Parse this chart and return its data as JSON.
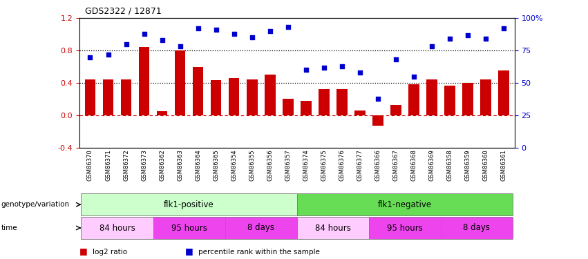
{
  "title": "GDS2322 / 12871",
  "samples": [
    "GSM86370",
    "GSM86371",
    "GSM86372",
    "GSM86373",
    "GSM86362",
    "GSM86363",
    "GSM86364",
    "GSM86365",
    "GSM86354",
    "GSM86355",
    "GSM86356",
    "GSM86357",
    "GSM86374",
    "GSM86375",
    "GSM86376",
    "GSM86377",
    "GSM86366",
    "GSM86367",
    "GSM86368",
    "GSM86369",
    "GSM86358",
    "GSM86359",
    "GSM86360",
    "GSM86361"
  ],
  "log2_ratio": [
    0.44,
    0.44,
    0.44,
    0.84,
    0.05,
    0.8,
    0.6,
    0.43,
    0.46,
    0.44,
    0.5,
    0.2,
    0.18,
    0.32,
    0.32,
    0.06,
    -0.13,
    0.13,
    0.38,
    0.44,
    0.37,
    0.4,
    0.44,
    0.55
  ],
  "pct_rank": [
    0.7,
    0.72,
    0.8,
    0.88,
    0.83,
    0.78,
    0.92,
    0.91,
    0.88,
    0.85,
    0.9,
    0.93,
    0.6,
    0.62,
    0.63,
    0.58,
    0.38,
    0.68,
    0.55,
    0.78,
    0.84,
    0.87,
    0.84,
    0.92
  ],
  "bar_color": "#cc0000",
  "dot_color": "#0000cc",
  "hline_color": "#cc0000",
  "dotted_line_color": "#000000",
  "ylim": [
    -0.4,
    1.2
  ],
  "yticks_left": [
    -0.4,
    0.0,
    0.4,
    0.8,
    1.2
  ],
  "yticks_right": [
    0,
    25,
    50,
    75,
    100
  ],
  "hlines_dotted": [
    0.4,
    0.8
  ],
  "genotype_groups": [
    {
      "label": "flk1-positive",
      "start": 0,
      "end": 11,
      "color": "#ccffcc"
    },
    {
      "label": "flk1-negative",
      "start": 12,
      "end": 23,
      "color": "#66dd55"
    }
  ],
  "time_color_list": [
    "#ffccff",
    "#ee44ee",
    "#ee44ee",
    "#ffccff",
    "#ee44ee",
    "#ee44ee"
  ],
  "time_groups": [
    {
      "label": "84 hours",
      "start": 0,
      "end": 3
    },
    {
      "label": "95 hours",
      "start": 4,
      "end": 7
    },
    {
      "label": "8 days",
      "start": 8,
      "end": 11
    },
    {
      "label": "84 hours",
      "start": 12,
      "end": 15
    },
    {
      "label": "95 hours",
      "start": 16,
      "end": 19
    },
    {
      "label": "8 days",
      "start": 20,
      "end": 23
    }
  ],
  "legend_items": [
    {
      "label": "log2 ratio",
      "color": "#cc0000"
    },
    {
      "label": "percentile rank within the sample",
      "color": "#0000cc"
    }
  ]
}
